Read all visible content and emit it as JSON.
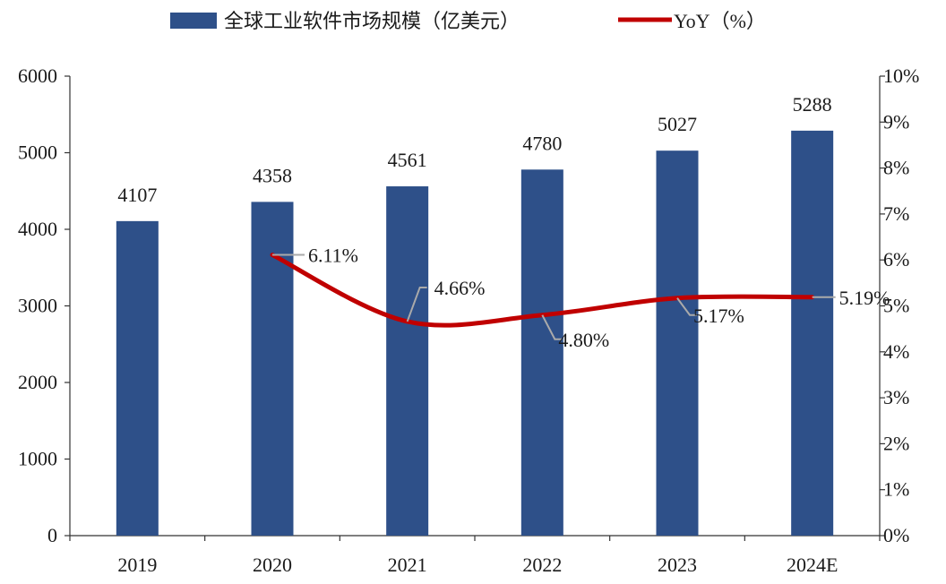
{
  "chart_data": {
    "type": "bar",
    "categories": [
      "2019",
      "2020",
      "2021",
      "2022",
      "2023",
      "2024E"
    ],
    "series": [
      {
        "name": "全球工业软件市场规模（亿美元）",
        "type": "bar",
        "axis": "left",
        "color": "#2e5089",
        "values": [
          4107,
          4358,
          4561,
          4780,
          5027,
          5288
        ],
        "labels": [
          "4107",
          "4358",
          "4561",
          "4780",
          "5027",
          "5288"
        ]
      },
      {
        "name": "YoY（%）",
        "type": "line",
        "axis": "right",
        "color": "#c00000",
        "values": [
          null,
          6.11,
          4.66,
          4.8,
          5.17,
          5.19
        ],
        "labels": [
          "",
          "6.11%",
          "4.66%",
          "4.80%",
          "5.17%",
          "5.19%"
        ]
      }
    ],
    "y_left": {
      "lim": [
        0,
        6000
      ],
      "ticks": [
        "0",
        "1000",
        "2000",
        "3000",
        "4000",
        "5000",
        "6000"
      ]
    },
    "y_right": {
      "lim": [
        0,
        10
      ],
      "ticks": [
        "0%",
        "1%",
        "2%",
        "3%",
        "4%",
        "5%",
        "6%",
        "7%",
        "8%",
        "9%",
        "10%"
      ]
    },
    "legend_position": "top-center",
    "grid": false
  }
}
